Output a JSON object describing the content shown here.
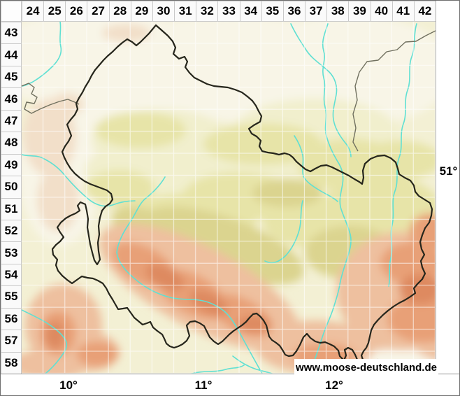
{
  "grid": {
    "column_labels": [
      "24",
      "25",
      "26",
      "27",
      "28",
      "29",
      "30",
      "31",
      "32",
      "33",
      "34",
      "35",
      "36",
      "37",
      "38",
      "39",
      "40",
      "41",
      "42"
    ],
    "row_labels": [
      "43",
      "44",
      "45",
      "46",
      "47",
      "48",
      "49",
      "50",
      "51",
      "52",
      "53",
      "54",
      "55",
      "56",
      "57",
      "58"
    ]
  },
  "axis": {
    "right_latitude_label": "51°",
    "bottom_longitude_labels": [
      "10°",
      "11°",
      "12°"
    ]
  },
  "watermark": {
    "text": "www.moose-deutschland.de"
  },
  "palette": {
    "relief_base": "#f3f0d4",
    "relief_cream": "#f8f5e7",
    "relief_pale_pink": "#f2dfc9",
    "relief_basin": "#f1efcd",
    "relief_green": "#e7e4a8",
    "relief_olive": "#dbd48f",
    "relief_salmon_light": "#eec09f",
    "relief_salmon": "#e8a077",
    "relief_salmon_deep": "#de8a61",
    "river": "#5fe0d3",
    "state_boundary": "#26261c",
    "neighbor_border": "#70705f",
    "grid_line": "#ffffff",
    "header_background": "#fafafa",
    "header_border": "#c9c9c9",
    "frame_border": "#6e6e6e"
  }
}
